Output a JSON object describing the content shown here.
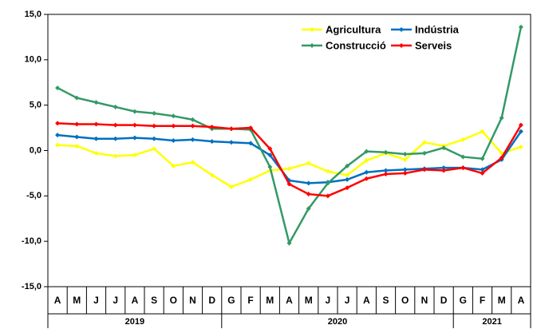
{
  "chart_data": {
    "type": "line",
    "categories": [
      "A",
      "M",
      "J",
      "J",
      "A",
      "S",
      "O",
      "N",
      "D",
      "G",
      "F",
      "M",
      "A",
      "M",
      "J",
      "J",
      "A",
      "S",
      "O",
      "N",
      "D",
      "G",
      "F",
      "M",
      "A"
    ],
    "category_groups": [
      {
        "label": "2019",
        "size": 9
      },
      {
        "label": "2020",
        "size": 12
      },
      {
        "label": "2021",
        "size": 4
      }
    ],
    "series": [
      {
        "name": "Agricultura",
        "color": "#ffff00",
        "values": [
          0.6,
          0.5,
          -0.3,
          -0.6,
          -0.5,
          0.2,
          -1.7,
          -1.3,
          -2.7,
          -4.0,
          -3.2,
          -2.2,
          -2.0,
          -1.4,
          -2.3,
          -2.7,
          -1.1,
          -0.3,
          -1.0,
          0.9,
          0.5,
          1.2,
          2.1,
          -0.3,
          0.4
        ]
      },
      {
        "name": "Indústria",
        "color": "#0070c0",
        "values": [
          1.7,
          1.5,
          1.3,
          1.3,
          1.4,
          1.3,
          1.1,
          1.2,
          1.0,
          0.9,
          0.8,
          -0.5,
          -3.3,
          -3.6,
          -3.5,
          -3.2,
          -2.4,
          -2.2,
          -2.1,
          -2.0,
          -1.9,
          -1.9,
          -2.1,
          -1.0,
          2.1
        ]
      },
      {
        "name": "Construcció",
        "color": "#339966",
        "values": [
          6.9,
          5.8,
          5.3,
          4.8,
          4.3,
          4.1,
          3.8,
          3.4,
          2.4,
          2.4,
          2.3,
          -1.8,
          -10.2,
          -6.4,
          -3.6,
          -1.7,
          -0.1,
          -0.2,
          -0.4,
          -0.3,
          0.3,
          -0.7,
          -0.9,
          3.6,
          13.6
        ]
      },
      {
        "name": "Serveis",
        "color": "#ff0000",
        "values": [
          3.0,
          2.9,
          2.9,
          2.8,
          2.8,
          2.7,
          2.7,
          2.7,
          2.6,
          2.4,
          2.5,
          0.2,
          -3.7,
          -4.8,
          -5.0,
          -4.1,
          -3.1,
          -2.6,
          -2.5,
          -2.1,
          -2.2,
          -1.9,
          -2.5,
          -0.8,
          2.8
        ]
      }
    ],
    "ylim": [
      -15,
      15
    ],
    "yticks": [
      {
        "value": -15,
        "label": "-15,0"
      },
      {
        "value": -10,
        "label": "-10,0"
      },
      {
        "value": -5,
        "label": "-5,0"
      },
      {
        "value": 0,
        "label": "0,0"
      },
      {
        "value": 5,
        "label": "5,0"
      },
      {
        "value": 10,
        "label": "10,0"
      },
      {
        "value": 15,
        "label": "15,0"
      }
    ],
    "grid": false,
    "legend": "upper right"
  }
}
